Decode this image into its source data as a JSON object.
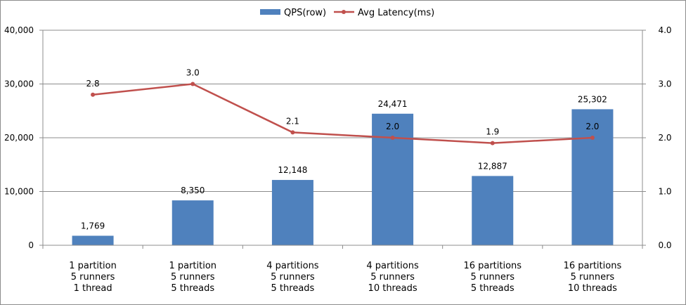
{
  "chart_data": {
    "type": "bar",
    "categories": [
      [
        "1 partition",
        "5 runners",
        "1 thread"
      ],
      [
        "1 partition",
        "5 runners",
        "5 threads"
      ],
      [
        "4 partitions",
        "5 runners",
        "5 threads"
      ],
      [
        "4 partitions",
        "5 runners",
        "10 threads"
      ],
      [
        "16 partitions",
        "5 runners",
        "5 threads"
      ],
      [
        "16 partitions",
        "5 runners",
        "10 threads"
      ]
    ],
    "series": [
      {
        "name": "QPS(row)",
        "type": "bar",
        "axis": "left",
        "color": "#4f81bd",
        "values": [
          1769,
          8350,
          12148,
          24471,
          12887,
          25302
        ],
        "labels": [
          "1,769",
          "8,350",
          "12,148",
          "24,471",
          "12,887",
          "25,302"
        ]
      },
      {
        "name": "Avg Latency(ms)",
        "type": "line",
        "axis": "right",
        "color": "#c0504d",
        "values": [
          2.8,
          3.0,
          2.1,
          2.0,
          1.9,
          2.0
        ],
        "labels": [
          "2.8",
          "3.0",
          "2.1",
          "2.0",
          "1.9",
          "2.0"
        ]
      }
    ],
    "y_left": {
      "range": [
        0,
        40000
      ],
      "ticks": [
        0,
        10000,
        20000,
        30000,
        40000
      ],
      "tick_labels": [
        "0",
        "10,000",
        "20,000",
        "30,000",
        "40,000"
      ]
    },
    "y_right": {
      "range": [
        0,
        4
      ],
      "ticks": [
        0,
        1,
        2,
        3,
        4
      ],
      "tick_labels": [
        "0.0",
        "1.0",
        "2.0",
        "3.0",
        "4.0"
      ]
    },
    "grid": true,
    "legend": "top-center"
  }
}
